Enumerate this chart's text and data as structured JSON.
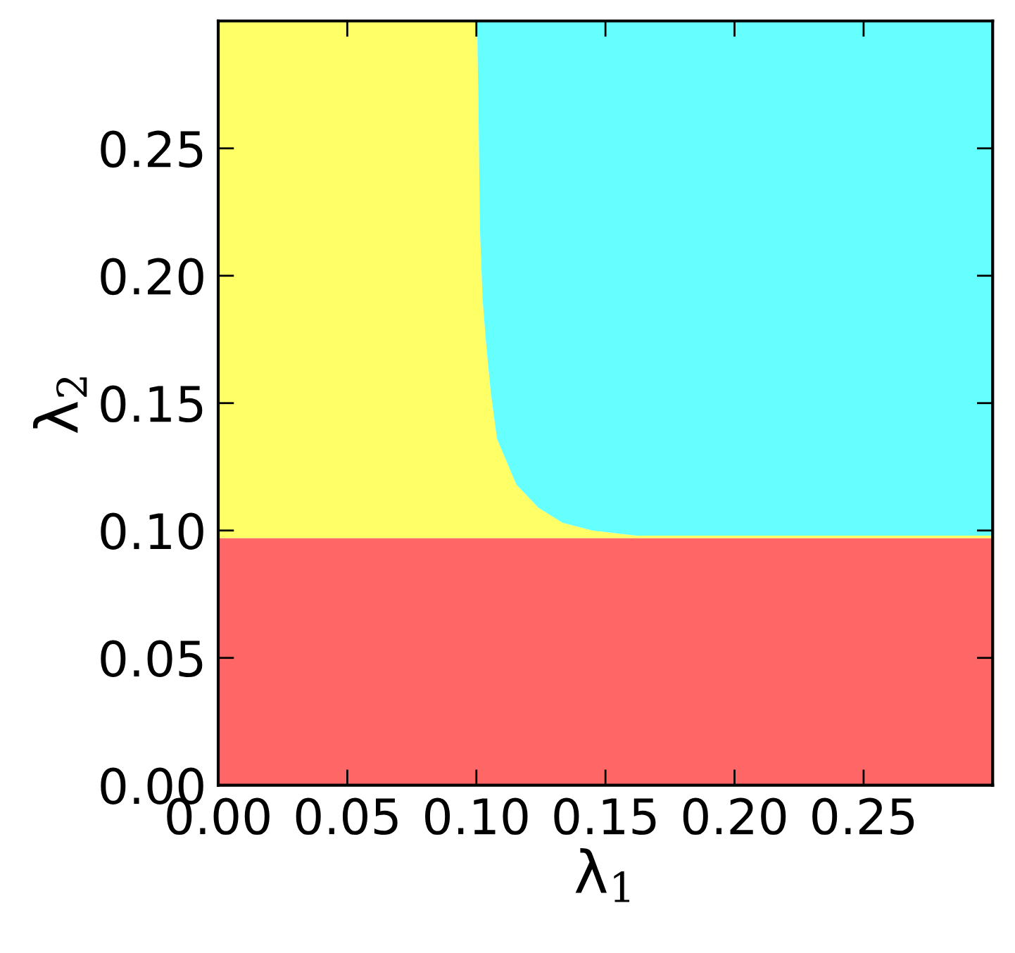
{
  "chart_data": {
    "type": "area",
    "stacked": true,
    "xlabel": "λ$_{1}$",
    "ylabel": "λ$_{2}$",
    "x": [
      0,
      0.1,
      0.1003,
      0.1008,
      0.1014,
      0.1024,
      0.1038,
      0.1056,
      0.108,
      0.1155,
      0.124,
      0.1334,
      0.145,
      0.162,
      0.3
    ],
    "series": [
      {
        "color": "#ff6666",
        "values": [
          0.097,
          0.097,
          0.097,
          0.097,
          0.097,
          0.097,
          0.097,
          0.097,
          0.097,
          0.097,
          0.097,
          0.097,
          0.097,
          0.097,
          0.097
        ]
      },
      {
        "color": "#ffff66",
        "values": [
          0.203,
          0.203,
          0.201,
          0.17,
          0.121,
          0.094,
          0.076,
          0.057,
          0.039,
          0.021,
          0.012,
          0.006,
          0.003,
          0.001,
          0.001
        ]
      },
      {
        "color": "#66ffff",
        "values": [
          0,
          0,
          0.002,
          0.033,
          0.082,
          0.109,
          0.127,
          0.146,
          0.164,
          0.182,
          0.191,
          0.197,
          0.2,
          0.202,
          0.202
        ]
      }
    ],
    "xlim": [
      0,
      0.3
    ],
    "ylim": [
      0,
      0.3
    ],
    "xticks": [
      {
        "value": 0,
        "label": "0.00"
      },
      {
        "value": 0.05,
        "label": "0.05"
      },
      {
        "value": 0.1,
        "label": "0.10"
      },
      {
        "value": 0.15,
        "label": "0.15"
      },
      {
        "value": 0.2,
        "label": "0.20"
      },
      {
        "value": 0.25,
        "label": "0.25"
      }
    ],
    "yticks": [
      {
        "value": 0,
        "label": "0.00"
      },
      {
        "value": 0.05,
        "label": "0.05"
      },
      {
        "value": 0.1,
        "label": "0.10"
      },
      {
        "value": 0.15,
        "label": "0.15"
      },
      {
        "value": 0.2,
        "label": "0.20"
      },
      {
        "value": 0.25,
        "label": "0.25"
      }
    ],
    "grid": false
  }
}
